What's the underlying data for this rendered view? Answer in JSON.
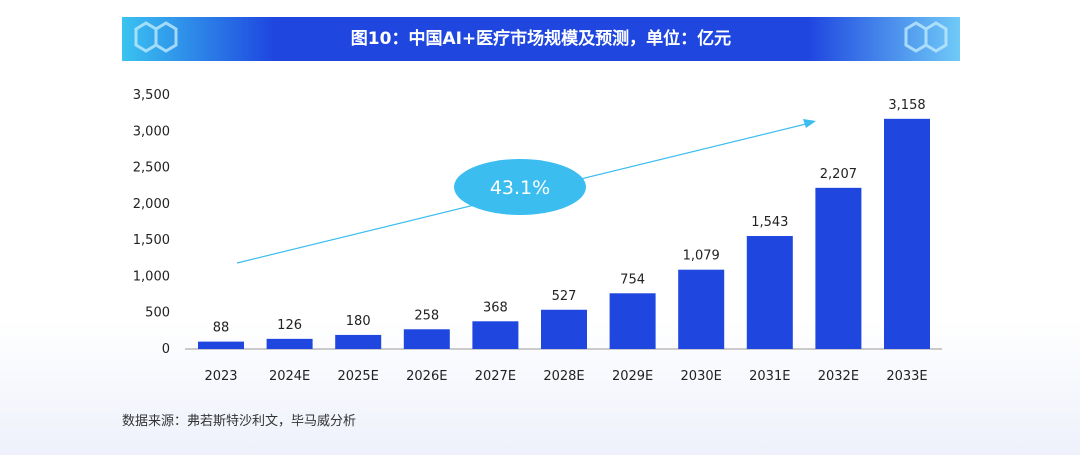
{
  "title": "图10：中国AI+医疗市场规模及预测，单位：亿元",
  "source": "数据来源：弗若斯特沙利文，毕马威分析",
  "colors": {
    "bar": "#1f47e0",
    "banner": "#1f47e0",
    "ellipse": "#3bbdf0",
    "arrow": "#3bbdf0"
  },
  "chart_data": {
    "type": "bar",
    "title": "图10：中国AI+医疗市场规模及预测，单位：亿元",
    "categories": [
      "2023",
      "2024E",
      "2025E",
      "2026E",
      "2027E",
      "2028E",
      "2029E",
      "2030E",
      "2031E",
      "2032E",
      "2033E"
    ],
    "values": [
      88,
      126,
      180,
      258,
      368,
      527,
      754,
      1079,
      1543,
      2207,
      3158
    ],
    "data_labels": [
      "88",
      "126",
      "180",
      "258",
      "368",
      "527",
      "754",
      "1,079",
      "1,543",
      "2,207",
      "3,158"
    ],
    "yticks": [
      "0",
      "500",
      "1,000",
      "1,500",
      "2,000",
      "2,500",
      "3,000",
      "3,500"
    ],
    "ylim": [
      0,
      3500
    ],
    "grid": false,
    "annotation": "43.1%"
  }
}
